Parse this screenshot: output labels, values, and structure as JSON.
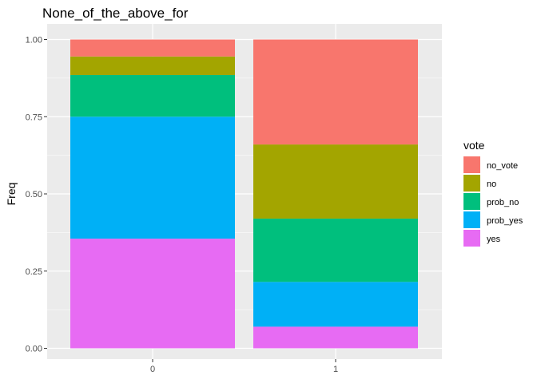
{
  "chart_data": {
    "type": "bar",
    "stacked": true,
    "title": "None_of_the_above_for",
    "xlabel": "",
    "ylabel": "Freq",
    "ylim": [
      0,
      1
    ],
    "yticks": [
      "0.00",
      "0.25",
      "0.50",
      "0.75",
      "1.00"
    ],
    "ytick_values": [
      0,
      0.25,
      0.5,
      0.75,
      1.0
    ],
    "categories": [
      "0",
      "1"
    ],
    "grid": true,
    "legend": {
      "title": "vote",
      "placement": "right"
    },
    "series": [
      {
        "name": "no_vote",
        "color": "#F8766D",
        "values": [
          0.055,
          0.34
        ]
      },
      {
        "name": "no",
        "color": "#A3A500",
        "values": [
          0.06,
          0.24
        ]
      },
      {
        "name": "prob_no",
        "color": "#00BF7D",
        "values": [
          0.135,
          0.205
        ]
      },
      {
        "name": "prob_yes",
        "color": "#00B0F6",
        "values": [
          0.395,
          0.145
        ]
      },
      {
        "name": "yes",
        "color": "#E76BF3",
        "values": [
          0.355,
          0.07
        ]
      }
    ]
  }
}
